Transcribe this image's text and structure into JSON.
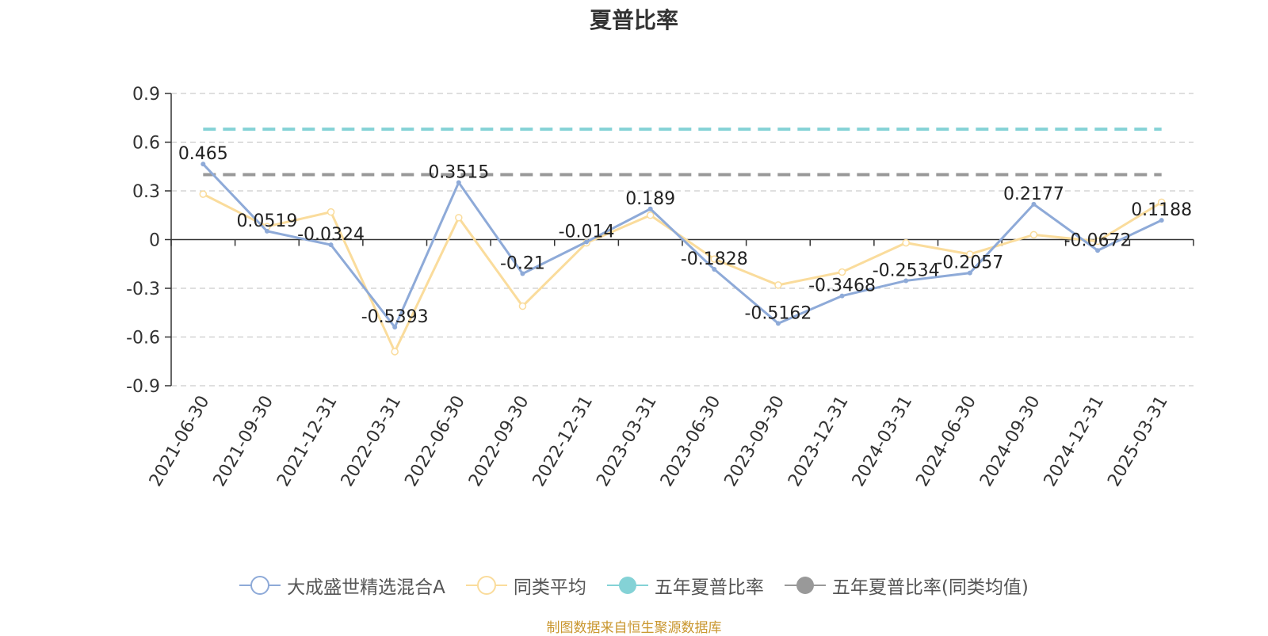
{
  "title": "夏普比率",
  "source_note": "制图数据来自恒生聚源数据库",
  "chart_data": {
    "type": "line",
    "title": "夏普比率",
    "xlabel": "",
    "ylabel": "",
    "ylim": [
      -0.9,
      0.9
    ],
    "yticks": [
      0.9,
      0.6,
      0.3,
      0,
      -0.3,
      -0.6,
      -0.9
    ],
    "ytick_labels": [
      "0.9",
      "0.6",
      "0.3",
      "0",
      "-0.3",
      "-0.6",
      "-0.9"
    ],
    "grid": true,
    "legend_position": "bottom-center",
    "categories": [
      "2021-06-30",
      "2021-09-30",
      "2021-12-31",
      "2022-03-31",
      "2022-06-30",
      "2022-09-30",
      "2022-12-31",
      "2023-03-31",
      "2023-06-30",
      "2023-09-30",
      "2023-12-31",
      "2024-03-31",
      "2024-06-30",
      "2024-09-30",
      "2024-12-31",
      "2025-03-31"
    ],
    "series": [
      {
        "name": "大成盛世精选混合A",
        "color": "#8eaad8",
        "values": [
          0.465,
          0.0519,
          -0.0324,
          -0.5393,
          0.3515,
          -0.21,
          -0.014,
          0.189,
          -0.1828,
          -0.5162,
          -0.3468,
          -0.2534,
          -0.2057,
          0.2177,
          -0.0672,
          0.1188
        ],
        "value_labels": [
          "0.465",
          "0.0519",
          "-0.0324",
          "-0.5393",
          "0.3515",
          "-0.21",
          "-0.014",
          "0.189",
          "-0.1828",
          "-0.5162",
          "-0.3468",
          "-0.2534",
          "-0.2057",
          "0.2177",
          "-0.0672",
          "0.1188"
        ]
      },
      {
        "name": "同类平均",
        "color": "#fadc9c",
        "values": [
          0.28,
          0.08,
          0.17,
          -0.69,
          0.135,
          -0.41,
          -0.02,
          0.15,
          -0.12,
          -0.28,
          -0.2,
          -0.02,
          -0.09,
          0.03,
          -0.01,
          0.23
        ]
      },
      {
        "name": "五年夏普比率",
        "color": "#84d2d6",
        "reference_value": 0.68
      },
      {
        "name": "五年夏普比率(同类均值)",
        "color": "#999999",
        "reference_value": 0.4
      }
    ]
  }
}
